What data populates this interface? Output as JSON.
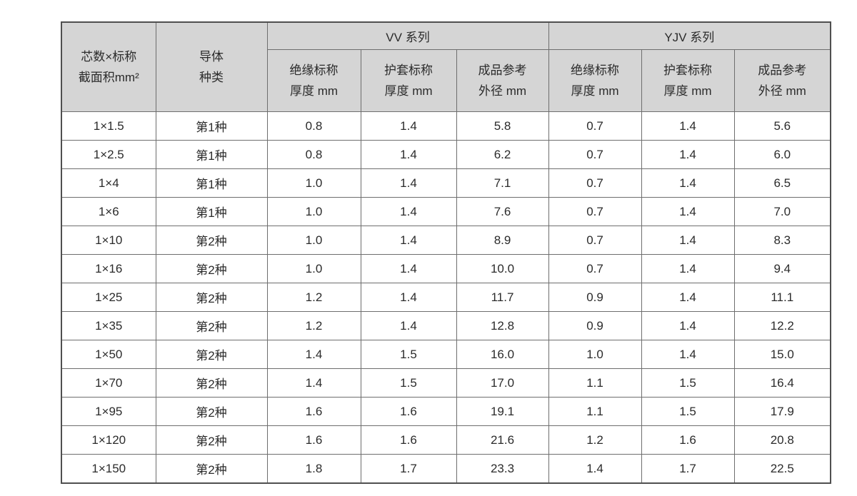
{
  "table": {
    "header": {
      "core": {
        "line1": "芯数×标称",
        "line2": "截面积mm²"
      },
      "conductor": {
        "line1": "导体",
        "line2": "种类"
      },
      "groups": [
        {
          "label": "VV 系列"
        },
        {
          "label": "YJV 系列"
        }
      ],
      "subcols": [
        {
          "line1": "绝缘标称",
          "line2": "厚度 mm"
        },
        {
          "line1": "护套标称",
          "line2": "厚度 mm"
        },
        {
          "line1": "成品参考",
          "line2": "外径 mm"
        }
      ]
    },
    "rows": [
      {
        "spec": "1×1.5",
        "conductor": "第1种",
        "vv": [
          "0.8",
          "1.4",
          "5.8"
        ],
        "yjv": [
          "0.7",
          "1.4",
          "5.6"
        ]
      },
      {
        "spec": "1×2.5",
        "conductor": "第1种",
        "vv": [
          "0.8",
          "1.4",
          "6.2"
        ],
        "yjv": [
          "0.7",
          "1.4",
          "6.0"
        ]
      },
      {
        "spec": "1×4",
        "conductor": "第1种",
        "vv": [
          "1.0",
          "1.4",
          "7.1"
        ],
        "yjv": [
          "0.7",
          "1.4",
          "6.5"
        ]
      },
      {
        "spec": "1×6",
        "conductor": "第1种",
        "vv": [
          "1.0",
          "1.4",
          "7.6"
        ],
        "yjv": [
          "0.7",
          "1.4",
          "7.0"
        ]
      },
      {
        "spec": "1×10",
        "conductor": "第2种",
        "vv": [
          "1.0",
          "1.4",
          "8.9"
        ],
        "yjv": [
          "0.7",
          "1.4",
          "8.3"
        ]
      },
      {
        "spec": "1×16",
        "conductor": "第2种",
        "vv": [
          "1.0",
          "1.4",
          "10.0"
        ],
        "yjv": [
          "0.7",
          "1.4",
          "9.4"
        ]
      },
      {
        "spec": "1×25",
        "conductor": "第2种",
        "vv": [
          "1.2",
          "1.4",
          "11.7"
        ],
        "yjv": [
          "0.9",
          "1.4",
          "11.1"
        ]
      },
      {
        "spec": "1×35",
        "conductor": "第2种",
        "vv": [
          "1.2",
          "1.4",
          "12.8"
        ],
        "yjv": [
          "0.9",
          "1.4",
          "12.2"
        ]
      },
      {
        "spec": "1×50",
        "conductor": "第2种",
        "vv": [
          "1.4",
          "1.5",
          "16.0"
        ],
        "yjv": [
          "1.0",
          "1.4",
          "15.0"
        ]
      },
      {
        "spec": "1×70",
        "conductor": "第2种",
        "vv": [
          "1.4",
          "1.5",
          "17.0"
        ],
        "yjv": [
          "1.1",
          "1.5",
          "16.4"
        ]
      },
      {
        "spec": "1×95",
        "conductor": "第2种",
        "vv": [
          "1.6",
          "1.6",
          "19.1"
        ],
        "yjv": [
          "1.1",
          "1.5",
          "17.9"
        ]
      },
      {
        "spec": "1×120",
        "conductor": "第2种",
        "vv": [
          "1.6",
          "1.6",
          "21.6"
        ],
        "yjv": [
          "1.2",
          "1.6",
          "20.8"
        ]
      },
      {
        "spec": "1×150",
        "conductor": "第2种",
        "vv": [
          "1.8",
          "1.7",
          "23.3"
        ],
        "yjv": [
          "1.4",
          "1.7",
          "22.5"
        ]
      }
    ],
    "colors": {
      "header_bg": "#d5d5d5",
      "border": "#6e6e6e",
      "outer_border": "#4f4f4f",
      "text": "#2b2b2b",
      "page_bg": "#ffffff"
    }
  }
}
